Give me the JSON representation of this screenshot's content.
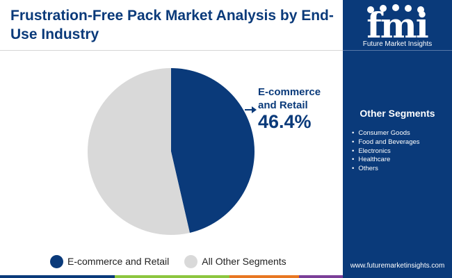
{
  "title": "Frustration-Free Pack Market Analysis by End-Use Industry",
  "chart_data": {
    "type": "pie",
    "slices": [
      {
        "label": "E-commerce and Retail",
        "value": 46.4,
        "color": "#0a3a7a"
      },
      {
        "label": "All Other Segments",
        "value": 53.6,
        "color": "#d9d9d9"
      }
    ],
    "callout": {
      "label": "E-commerce and Retail",
      "value": "46.4%"
    },
    "legend_position": "bottom"
  },
  "legend": [
    {
      "label": "E-commerce and Retail",
      "color": "#0a3a7a"
    },
    {
      "label": "All Other Segments",
      "color": "#d9d9d9"
    }
  ],
  "sidebar": {
    "logo_letters": "fmi",
    "logo_name": "Future Market Insights",
    "segments_title": "Other Segments",
    "segments": [
      "Consumer Goods",
      "Food and Beverages",
      "Electronics",
      "Healthcare",
      "Others"
    ],
    "url": "www.futuremarketinsights.com"
  },
  "colors": {
    "brand": "#0a3a7a",
    "other": "#d9d9d9",
    "bar": [
      "#0a3a7a",
      "#8cc63f",
      "#e87722",
      "#7b3f98"
    ]
  }
}
